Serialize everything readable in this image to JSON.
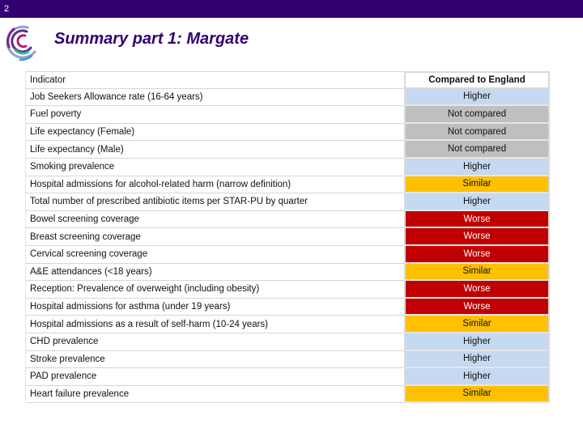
{
  "slide": {
    "number": "2",
    "title": "Summary part 1: Margate"
  },
  "colors": {
    "header_bar": "#330072",
    "Higher": "#c5d9f1",
    "Not compared": "#bfbfbf",
    "Similar": "#ffc000",
    "Worse": "#c00000"
  },
  "table": {
    "headers": [
      "Indicator",
      "Compared to England"
    ],
    "rows": [
      {
        "indicator": "Job Seekers Allowance rate (16-64 years)",
        "compared": "Higher"
      },
      {
        "indicator": "Fuel poverty",
        "compared": "Not compared"
      },
      {
        "indicator": "Life expectancy (Female)",
        "compared": "Not compared"
      },
      {
        "indicator": "Life expectancy (Male)",
        "compared": "Not compared"
      },
      {
        "indicator": "Smoking prevalence",
        "compared": "Higher"
      },
      {
        "indicator": "Hospital admissions for alcohol-related harm (narrow definition)",
        "compared": "Similar"
      },
      {
        "indicator": "Total number of prescribed antibiotic items per STAR-PU by quarter",
        "compared": "Higher"
      },
      {
        "indicator": "Bowel screening coverage",
        "compared": "Worse"
      },
      {
        "indicator": "Breast screening coverage",
        "compared": "Worse"
      },
      {
        "indicator": "Cervical screening coverage",
        "compared": "Worse"
      },
      {
        "indicator": "A&E attendances (<18 years)",
        "compared": "Similar"
      },
      {
        "indicator": "Reception: Prevalence of overweight (including obesity)",
        "compared": "Worse"
      },
      {
        "indicator": "Hospital admissions for asthma (under 19 years)",
        "compared": "Worse"
      },
      {
        "indicator": "Hospital admissions as a result of self-harm (10-24 years)",
        "compared": "Similar"
      },
      {
        "indicator": "CHD prevalence",
        "compared": "Higher"
      },
      {
        "indicator": "Stroke prevalence",
        "compared": "Higher"
      },
      {
        "indicator": "PAD prevalence",
        "compared": "Higher"
      },
      {
        "indicator": "Heart failure prevalence",
        "compared": "Similar"
      }
    ]
  }
}
